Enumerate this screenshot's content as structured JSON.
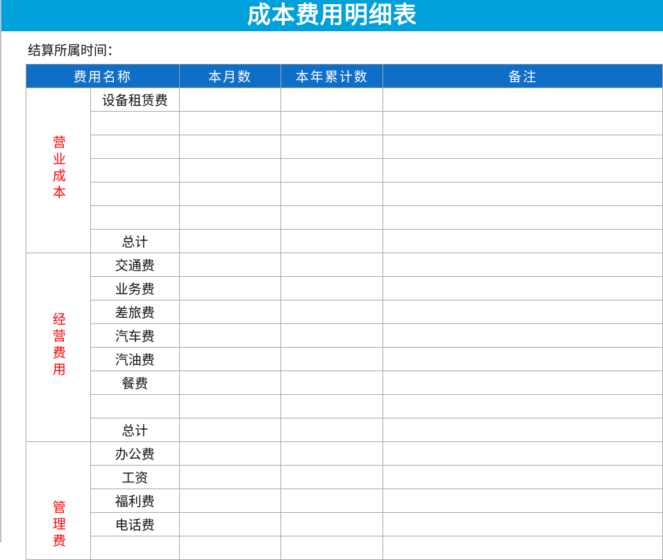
{
  "title": "成本费用明细表",
  "period_label": "结算所属时间：",
  "headers": [
    "费用名称",
    "本月数",
    "本年累计数",
    "备注"
  ],
  "colors": {
    "title_bg": "#00A0DA",
    "header_bg": "#0F6FC6",
    "category_text": "#FF0000"
  },
  "groups": [
    {
      "category": "营业成本",
      "items": [
        "设备租赁费",
        "",
        "",
        "",
        "",
        "",
        "总计"
      ]
    },
    {
      "category": "经营费用",
      "items": [
        "交通费",
        "业务费",
        "差旅费",
        "汽车费",
        "汽油费",
        "餐费",
        "",
        "总计"
      ]
    },
    {
      "category": "管理费",
      "items": [
        "办公费",
        "工资",
        "福利费",
        "电话费",
        ""
      ]
    }
  ]
}
